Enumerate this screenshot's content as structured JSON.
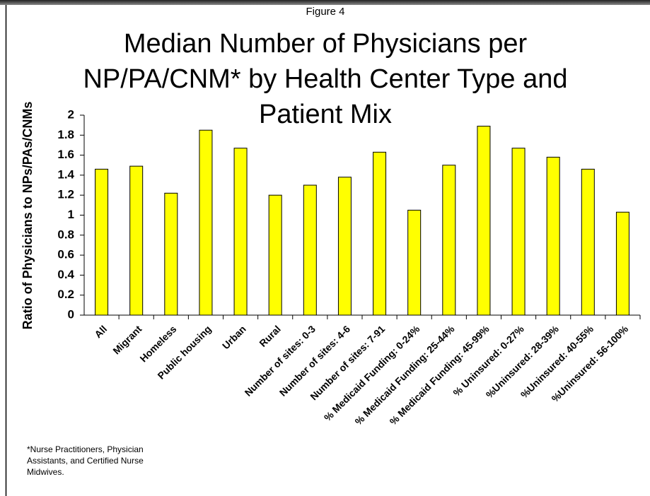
{
  "chart_data": {
    "type": "bar",
    "figure_label": "Figure 4",
    "title": [
      "Median Number of Physicians per",
      "NP/PA/CNM* by Health Center Type and",
      "Patient Mix"
    ],
    "y_label": "Ratio of Physicians to NPs/PAs/CNMs",
    "footnote": [
      "*Nurse Practitioners, Physician",
      "Assistants, and Certified Nurse",
      "Midwives."
    ],
    "categories": [
      "All",
      "Migrant",
      "Homeless",
      "Public housing",
      "Urban",
      "Rural",
      "Number of sites: 0-3",
      "Number of sites: 4-6",
      "Number of sites: 7-91",
      "% Medicaid Funding: 0-24%",
      "% Medicaid Funding: 25-44%",
      "% Medicaid Funding: 45-99%",
      "% Uninsured: 0-27%",
      "%Uninsured: 28-39%",
      "%Uninsured: 40-55%",
      "%Uninsured: 56-100%"
    ],
    "values": [
      1.46,
      1.49,
      1.22,
      1.85,
      1.67,
      1.2,
      1.3,
      1.38,
      1.63,
      1.05,
      1.5,
      1.89,
      1.67,
      1.58,
      1.46,
      1.03
    ],
    "color": "#ffff00",
    "ylim": [
      0,
      2
    ],
    "yticks": [
      0,
      0.2,
      0.4,
      0.6,
      0.8,
      1,
      1.2,
      1.4,
      1.6,
      1.8,
      2
    ],
    "grid": false
  }
}
